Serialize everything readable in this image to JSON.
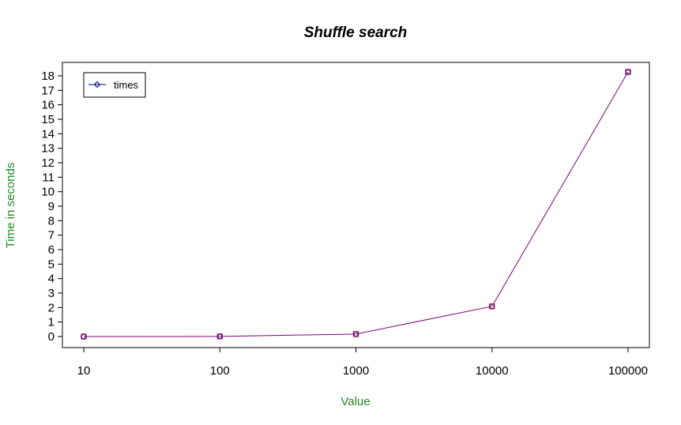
{
  "chart_data": {
    "type": "line",
    "title": "Shuffle search",
    "xlabel": "Value",
    "ylabel": "Time in seconds",
    "x_scale": "log",
    "categories": [
      "10",
      "100",
      "1000",
      "10000",
      "100000"
    ],
    "x": [
      10,
      100,
      1000,
      10000,
      100000
    ],
    "ylim": [
      0,
      18
    ],
    "y_ticks": [
      "0",
      "1",
      "2",
      "3",
      "4",
      "5",
      "6",
      "7",
      "8",
      "9",
      "10",
      "11",
      "12",
      "13",
      "14",
      "15",
      "16",
      "17",
      "18"
    ],
    "series": [
      {
        "name": "times",
        "values": [
          0.0,
          0.01,
          0.17,
          2.08,
          18.27
        ]
      }
    ],
    "legend": {
      "position": "top-left",
      "entries": [
        "times"
      ]
    },
    "grid": false,
    "colors": {
      "line": "#800080",
      "points": "#cc0033",
      "legend_line": "#000080",
      "label": "#228b22"
    }
  }
}
